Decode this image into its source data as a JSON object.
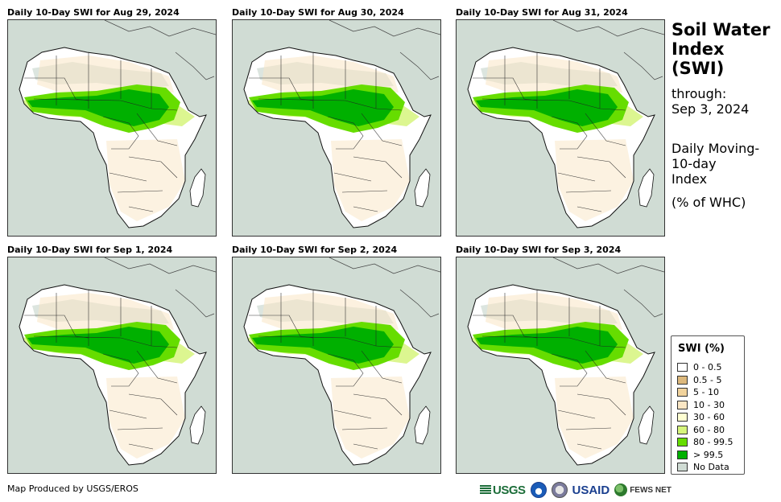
{
  "panels": [
    {
      "title": "Daily 10-Day SWI for Aug 29, 2024"
    },
    {
      "title": "Daily 10-Day SWI for Aug 30, 2024"
    },
    {
      "title": "Daily 10-Day SWI for Aug 31, 2024"
    },
    {
      "title": "Daily 10-Day SWI for Sep 1, 2024"
    },
    {
      "title": "Daily 10-Day SWI for Sep 2, 2024"
    },
    {
      "title": "Daily 10-Day SWI for Sep 3, 2024"
    }
  ],
  "sidebar": {
    "title_line1": "Soil Water",
    "title_line2": "Index",
    "title_line3": "(SWI)",
    "through_label": "through:",
    "through_date": "Sep 3, 2024",
    "desc_line1": "Daily Moving-",
    "desc_line2": "10-day",
    "desc_line3": "Index",
    "unit": "(% of WHC)"
  },
  "legend": {
    "title": "SWI (%)",
    "items": [
      {
        "label": "0 - 0.5",
        "color": "#ffffff"
      },
      {
        "label": "0.5 - 5",
        "color": "#dcb87c"
      },
      {
        "label": "5 - 10",
        "color": "#f1d39c"
      },
      {
        "label": "10 - 30",
        "color": "#fae6c4"
      },
      {
        "label": "30 - 60",
        "color": "#ffffd2"
      },
      {
        "label": "60 - 80",
        "color": "#d6f57c"
      },
      {
        "label": "80 - 99.5",
        "color": "#66dd00"
      },
      {
        "label": "> 99.5",
        "color": "#00b000"
      },
      {
        "label": "No Data",
        "color": "#d0dcd4"
      }
    ]
  },
  "footer": {
    "credit": "Map Produced by USGS/EROS",
    "logos": {
      "usgs": "USGS",
      "usaid": "USAID",
      "fews": "FEWS NET"
    }
  }
}
